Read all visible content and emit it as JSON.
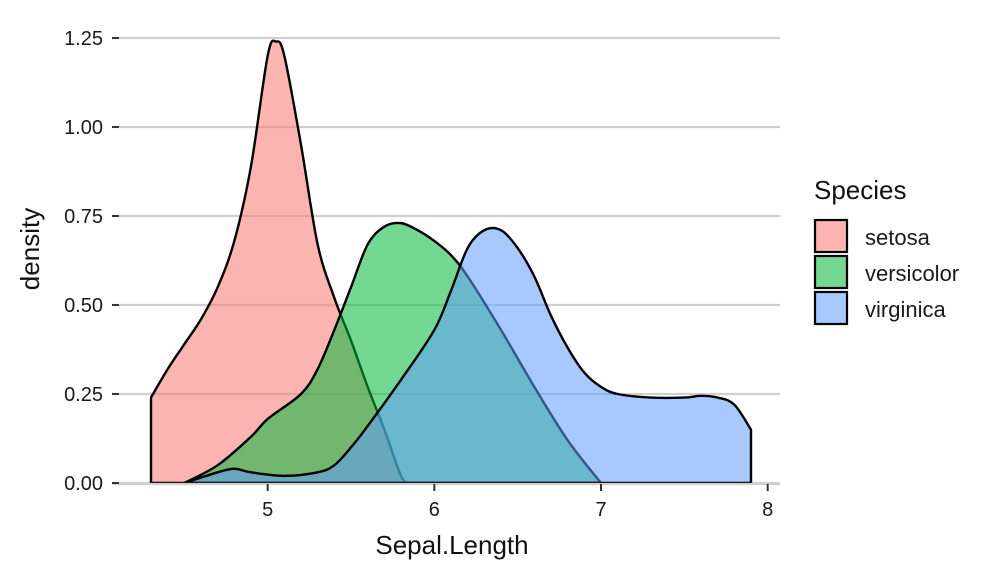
{
  "chart_data": {
    "type": "area",
    "subtype": "density",
    "title": "",
    "xlabel": "Sepal.Length",
    "ylabel": "density",
    "xlim": [
      4.3,
      7.9
    ],
    "ylim": [
      0,
      1.25
    ],
    "x_ticks": [
      5,
      6,
      7,
      8
    ],
    "y_ticks": [
      0,
      0.25,
      0.5,
      0.75,
      1.0,
      1.25
    ],
    "y_tick_labels": [
      "0.00",
      "0.25",
      "0.50",
      "0.75",
      "1.00",
      "1.25"
    ],
    "grid": "horizontal",
    "legend": {
      "title": "Species",
      "position": "right"
    },
    "series": [
      {
        "name": "setosa",
        "color": "#F8766D",
        "points": [
          [
            4.3,
            0.24
          ],
          [
            4.4,
            0.32
          ],
          [
            4.5,
            0.39
          ],
          [
            4.6,
            0.46
          ],
          [
            4.7,
            0.55
          ],
          [
            4.8,
            0.68
          ],
          [
            4.9,
            0.89
          ],
          [
            5.0,
            1.2
          ],
          [
            5.05,
            1.24
          ],
          [
            5.1,
            1.2
          ],
          [
            5.2,
            0.95
          ],
          [
            5.3,
            0.67
          ],
          [
            5.4,
            0.52
          ],
          [
            5.5,
            0.4
          ],
          [
            5.6,
            0.27
          ],
          [
            5.7,
            0.15
          ],
          [
            5.8,
            0.02
          ],
          [
            5.85,
            0.0
          ]
        ]
      },
      {
        "name": "versicolor",
        "color": "#00BA38",
        "points": [
          [
            4.5,
            0.0
          ],
          [
            4.7,
            0.05
          ],
          [
            4.9,
            0.13
          ],
          [
            5.0,
            0.18
          ],
          [
            5.2,
            0.25
          ],
          [
            5.3,
            0.32
          ],
          [
            5.4,
            0.43
          ],
          [
            5.5,
            0.55
          ],
          [
            5.6,
            0.67
          ],
          [
            5.7,
            0.72
          ],
          [
            5.8,
            0.73
          ],
          [
            5.9,
            0.71
          ],
          [
            6.0,
            0.68
          ],
          [
            6.1,
            0.64
          ],
          [
            6.2,
            0.58
          ],
          [
            6.4,
            0.43
          ],
          [
            6.6,
            0.27
          ],
          [
            6.8,
            0.12
          ],
          [
            7.0,
            0.0
          ]
        ]
      },
      {
        "name": "virginica",
        "color": "#619CFF",
        "points": [
          [
            4.5,
            0.0
          ],
          [
            4.7,
            0.03
          ],
          [
            4.8,
            0.04
          ],
          [
            4.9,
            0.03
          ],
          [
            5.1,
            0.02
          ],
          [
            5.3,
            0.03
          ],
          [
            5.4,
            0.05
          ],
          [
            5.5,
            0.1
          ],
          [
            5.6,
            0.16
          ],
          [
            5.8,
            0.29
          ],
          [
            6.0,
            0.43
          ],
          [
            6.1,
            0.54
          ],
          [
            6.2,
            0.66
          ],
          [
            6.3,
            0.71
          ],
          [
            6.4,
            0.71
          ],
          [
            6.5,
            0.66
          ],
          [
            6.6,
            0.58
          ],
          [
            6.7,
            0.47
          ],
          [
            6.8,
            0.38
          ],
          [
            6.9,
            0.31
          ],
          [
            7.0,
            0.27
          ],
          [
            7.1,
            0.25
          ],
          [
            7.3,
            0.24
          ],
          [
            7.5,
            0.24
          ],
          [
            7.6,
            0.245
          ],
          [
            7.7,
            0.24
          ],
          [
            7.8,
            0.22
          ],
          [
            7.9,
            0.15
          ]
        ]
      }
    ]
  }
}
